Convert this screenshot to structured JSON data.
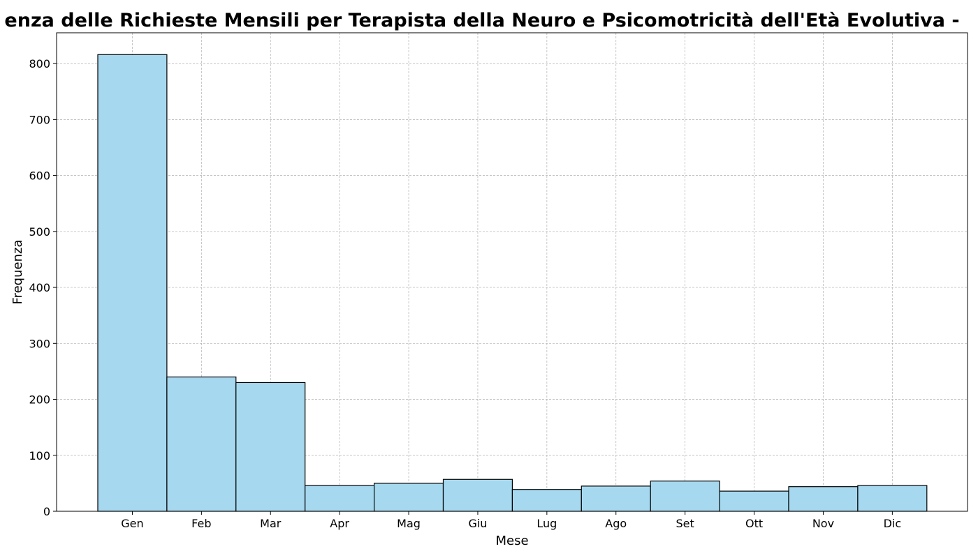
{
  "chart_data": {
    "type": "bar",
    "title": "enza delle Richieste Mensili per Terapista della Neuro e Psicomotricità dell'Età Evolutiva -",
    "xlabel": "Mese",
    "ylabel": "Frequenza",
    "categories": [
      "Gen",
      "Feb",
      "Mar",
      "Apr",
      "Mag",
      "Giu",
      "Lug",
      "Ago",
      "Set",
      "Ott",
      "Nov",
      "Dic"
    ],
    "values": [
      816,
      240,
      230,
      46,
      50,
      57,
      39,
      45,
      54,
      36,
      44,
      46
    ],
    "ylim": [
      0,
      855
    ],
    "yticks": [
      "0",
      "100",
      "200",
      "300",
      "400",
      "500",
      "600",
      "700",
      "800"
    ],
    "grid": true,
    "bar_color": "#a6d9ef",
    "edge_color": "#000000"
  }
}
